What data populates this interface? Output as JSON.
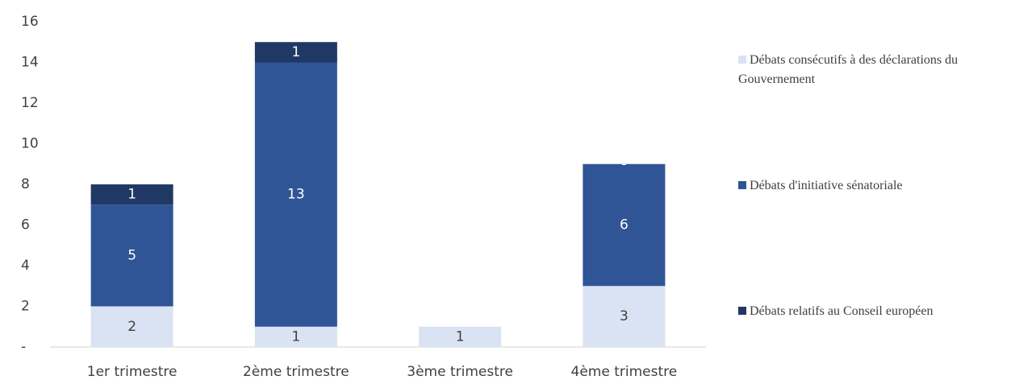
{
  "chart_data": {
    "type": "bar",
    "stacked": true,
    "categories": [
      "1er trimestre",
      "2ème trimestre",
      "3ème trimestre",
      "4ème trimestre"
    ],
    "series": [
      {
        "name": "Débats consécutifs à des déclarations du Gouvernement",
        "color": "#dae3f3",
        "values": [
          2,
          1,
          1,
          3
        ]
      },
      {
        "name": "Débats d'initiative sénatoriale",
        "color": "#2f5597",
        "values": [
          5,
          13,
          null,
          6
        ]
      },
      {
        "name": "Débats relatifs au Conseil européen",
        "color": "#203864",
        "values": [
          1,
          1,
          null,
          0
        ],
        "value_labels": [
          "1",
          "1",
          null,
          "-"
        ]
      }
    ],
    "ylim": [
      0,
      16
    ],
    "yticks": [
      {
        "value": 0,
        "label": "-"
      },
      2,
      4,
      6,
      8,
      10,
      12,
      14,
      16
    ],
    "grid": false,
    "legend": "right"
  }
}
